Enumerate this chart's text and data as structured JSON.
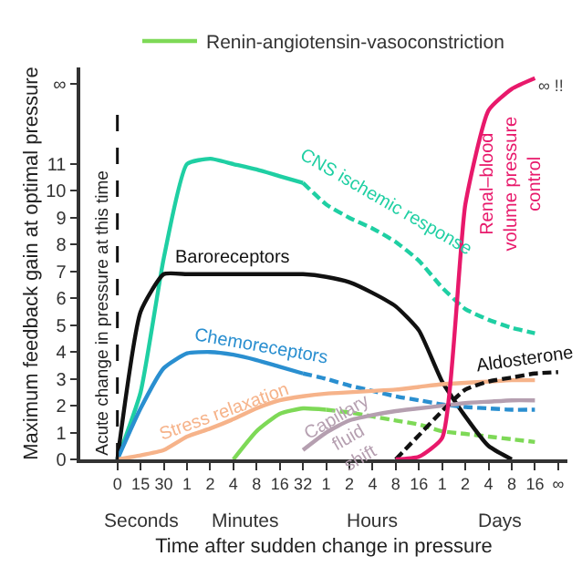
{
  "chart_data": {
    "type": "line",
    "xlabel": "Time after sudden change in pressure",
    "ylabel": "Maximum feedback gain at optimal pressure",
    "categories": [
      "0",
      "15",
      "30",
      "1",
      "2",
      "4",
      "8",
      "16",
      "32",
      "1",
      "2",
      "4",
      "8",
      "16",
      "1",
      "2",
      "4",
      "8",
      "16",
      "∞"
    ],
    "ylim": [
      0,
      14.6
    ],
    "yticks": [
      0,
      1,
      2,
      3,
      4,
      5,
      6,
      7,
      8,
      9,
      10,
      11,
      {
        "value": 14,
        "label": "∞"
      }
    ],
    "legend": "top",
    "marker": "none",
    "series": [
      {
        "name": "Renin-angiotensin-vasoconstriction",
        "color": "#7ed957",
        "line_style": "solid",
        "values": [
          null,
          null,
          null,
          null,
          null,
          0,
          1.05,
          1.7,
          1.9,
          1.85,
          null,
          null,
          null,
          null,
          null,
          null,
          null,
          null,
          null,
          null
        ]
      },
      {
        "color": "#7ed957",
        "line_style": "dashed",
        "values": [
          null,
          null,
          null,
          null,
          null,
          null,
          null,
          null,
          null,
          1.85,
          1.75,
          1.6,
          1.45,
          1.3,
          1.05,
          0.95,
          0.85,
          0.75,
          0.65,
          null
        ]
      },
      {
        "name": "CNS ischemic response",
        "color": "#1fcfa3",
        "line_style": "solid",
        "values": [
          0,
          2.5,
          7.5,
          11.0,
          11.2,
          11.0,
          10.8,
          10.55,
          10.3,
          null,
          null,
          null,
          null,
          null,
          null,
          null,
          null,
          null,
          null,
          null
        ]
      },
      {
        "color": "#1fcfa3",
        "line_style": "dashed",
        "values": [
          null,
          null,
          null,
          null,
          null,
          null,
          null,
          null,
          10.3,
          9.5,
          9.0,
          8.6,
          8.1,
          7.4,
          6.4,
          5.6,
          5.2,
          4.9,
          4.7,
          null
        ]
      },
      {
        "name": "Baroreceptors",
        "color": "#111111",
        "line_style": "solid",
        "values": [
          0,
          5.5,
          6.9,
          6.9,
          6.9,
          6.9,
          6.9,
          6.9,
          6.9,
          6.8,
          6.6,
          6.2,
          5.7,
          4.8,
          2.9,
          1.6,
          0.5,
          0,
          null,
          null
        ]
      },
      {
        "name": "Chemoreceptors",
        "color": "#2a8fd0",
        "line_style": "solid",
        "values": [
          0,
          1.9,
          3.4,
          3.95,
          4.0,
          3.9,
          3.7,
          3.45,
          3.2,
          null,
          null,
          null,
          null,
          null,
          null,
          null,
          null,
          null,
          null,
          null
        ]
      },
      {
        "color": "#2a8fd0",
        "line_style": "dashed",
        "values": [
          null,
          null,
          null,
          null,
          null,
          null,
          null,
          null,
          3.2,
          3.0,
          2.75,
          2.55,
          2.35,
          2.2,
          2.05,
          1.95,
          1.9,
          1.85,
          1.85,
          null
        ]
      },
      {
        "name": "Stress relaxation",
        "color": "#f6b38a",
        "line_style": "solid",
        "values": [
          0,
          0.15,
          0.35,
          0.85,
          1.15,
          1.5,
          1.9,
          2.2,
          2.35,
          2.45,
          2.5,
          2.55,
          2.6,
          2.7,
          2.8,
          2.85,
          2.9,
          2.95,
          2.95,
          null
        ]
      },
      {
        "name": "Capillary fluid shift",
        "color": "#b59fb0",
        "line_style": "solid",
        "values": [
          null,
          null,
          null,
          null,
          null,
          null,
          null,
          null,
          0.35,
          1.0,
          1.45,
          1.65,
          1.8,
          1.9,
          2.0,
          2.1,
          2.15,
          2.2,
          2.2,
          null
        ]
      },
      {
        "name": "Aldosterone",
        "color": "#111111",
        "line_style": "dashed",
        "values": [
          null,
          null,
          null,
          null,
          null,
          null,
          null,
          null,
          null,
          null,
          null,
          null,
          0,
          0.9,
          1.8,
          2.6,
          2.9,
          3.05,
          3.2,
          3.25
        ]
      },
      {
        "name": "Renal–blood volume pressure control",
        "color": "#e8196b",
        "line_style": "solid",
        "values": [
          null,
          null,
          null,
          null,
          null,
          null,
          null,
          null,
          null,
          null,
          null,
          null,
          0,
          0.1,
          0.8,
          9.5,
          13.0,
          13.8,
          14.2,
          null
        ]
      }
    ],
    "ref_lines": [
      {
        "axis": "x",
        "value": "0",
        "label": "Acute change in pressure at this time",
        "line_style": "dashed",
        "color": "#111111"
      }
    ],
    "annotations": [
      "Seconds",
      "Minutes",
      "Hours",
      "Days",
      "∞ !!"
    ]
  }
}
